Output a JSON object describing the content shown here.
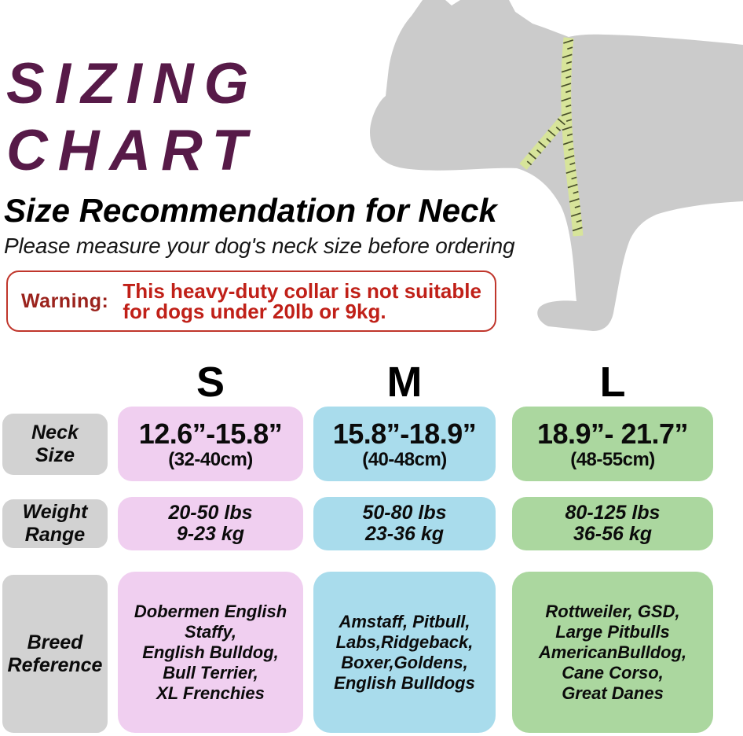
{
  "title": "SIZING\nCHART",
  "subtitle": "Size Recommendation for Neck",
  "note": "Please measure your dog's neck size before ordering",
  "warning": {
    "label": "Warning:",
    "message": "This heavy-duty collar is not suitable\nfor dogs under 20lb or 9kg."
  },
  "sizes": [
    "S",
    "M",
    "L"
  ],
  "rows": {
    "neck": {
      "label": "Neck\nSize",
      "s": {
        "inches": "12.6”-15.8”",
        "cm": "(32-40cm)"
      },
      "m": {
        "inches": "15.8”-18.9”",
        "cm": "(40-48cm)"
      },
      "l": {
        "inches": "18.9”- 21.7”",
        "cm": "(48-55cm)"
      }
    },
    "weight": {
      "label": "Weight\nRange",
      "s": "20-50 lbs\n9-23 kg",
      "m": "50-80 lbs\n23-36 kg",
      "l": "80-125 lbs\n36-56 kg"
    },
    "breed": {
      "label": "Breed\nReference",
      "s": "Dobermen English\nStaffy,\nEnglish Bulldog,\nBull Terrier,\nXL Frenchies",
      "m": "Amstaff, Pitbull,\nLabs,Ridgeback,\nBoxer,Goldens,\nEnglish Bulldogs",
      "l": "Rottweiler, GSD,\nLarge Pitbulls\nAmericanBulldog,\nCane Corso,\nGreat Danes"
    }
  },
  "colors": {
    "title_plum": "#571a48",
    "warning_text": "#c02018",
    "warning_label": "#9b231d",
    "warning_border": "#c0362c",
    "size_s_pink": "#f0cff0",
    "size_m_blue": "#a9dcec",
    "size_l_green": "#abd79f",
    "label_gray": "#d2d2d2",
    "dog_gray": "#cbcbcb",
    "tape_green": "#d7e49a",
    "tape_ticks": "#49502b"
  },
  "chart_data": {
    "type": "table",
    "title": "SIZING CHART",
    "subtitle": "Size Recommendation for Neck",
    "note": "Please measure your dog's neck size before ordering",
    "warning": "This heavy-duty collar is not suitable for dogs under 20lb or 9kg.",
    "columns": [
      "S",
      "M",
      "L"
    ],
    "rows": [
      {
        "label": "Neck Size",
        "values": [
          "12.6\"-15.8\" (32-40cm)",
          "15.8\"-18.9\" (40-48cm)",
          "18.9\"- 21.7\" (48-55cm)"
        ]
      },
      {
        "label": "Weight Range",
        "values": [
          "20-50 lbs / 9-23 kg",
          "50-80 lbs / 23-36 kg",
          "80-125 lbs / 36-56 kg"
        ]
      },
      {
        "label": "Breed Reference",
        "values": [
          "Dobermen English Staffy, English Bulldog, Bull Terrier, XL Frenchies",
          "Amstaff, Pitbull, Labs,Ridgeback, Boxer,Goldens, English Bulldogs",
          "Rottweiler, GSD, Large Pitbulls AmericanBulldog, Cane Corso, Great Danes"
        ]
      }
    ]
  }
}
